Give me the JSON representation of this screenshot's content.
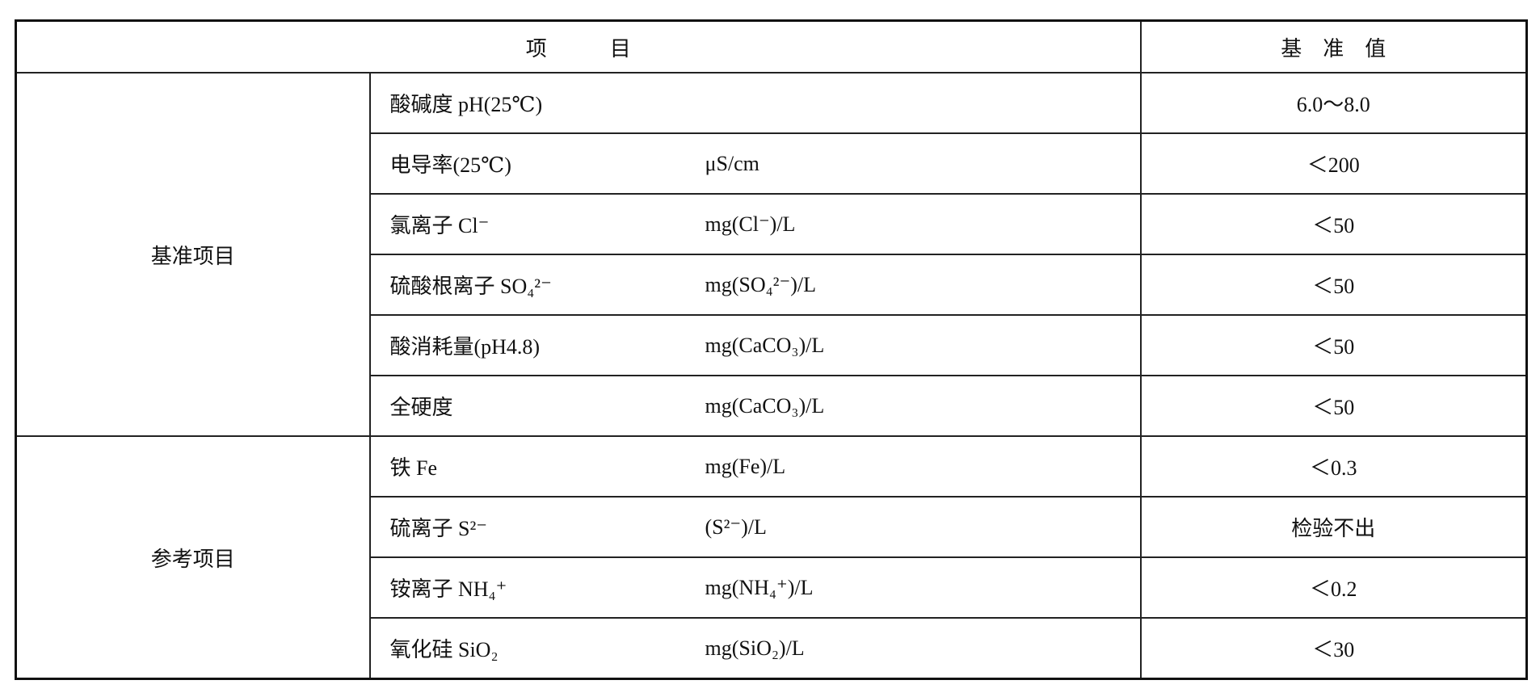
{
  "header": {
    "item": "项　　　目",
    "standard": "基　准　值"
  },
  "groups": [
    {
      "label": "基准项目",
      "rows": [
        {
          "name": "酸碱度 pH(25℃)",
          "unit": "",
          "value": "6.0～8.0"
        },
        {
          "name": "电导率(25℃)",
          "unit": "μS/cm",
          "value": "＜200"
        },
        {
          "name": "氯离子 Cl⁻",
          "unit": "mg(Cl⁻)/L",
          "value": "＜50"
        },
        {
          "name": "硫酸根离子 SO₄²⁻",
          "unit": "mg(SO₄²⁻)/L",
          "value": "＜50"
        },
        {
          "name": "酸消耗量(pH4.8)",
          "unit": "mg(CaCO₃)/L",
          "value": "＜50"
        },
        {
          "name": "全硬度",
          "unit": "mg(CaCO₃)/L",
          "value": "＜50"
        }
      ]
    },
    {
      "label": "参考项目",
      "rows": [
        {
          "name": "铁 Fe",
          "unit": "mg(Fe)/L",
          "value": "＜0.3"
        },
        {
          "name": "硫离子 S²⁻",
          "unit": "(S²⁻)/L",
          "value": "检验不出"
        },
        {
          "name": "铵离子 NH₄⁺",
          "unit": "mg(NH₄⁺)/L",
          "value": "＜0.2"
        },
        {
          "name": "氧化硅 SiO₂",
          "unit": "mg(SiO₂)/L",
          "value": "＜30"
        }
      ]
    }
  ]
}
